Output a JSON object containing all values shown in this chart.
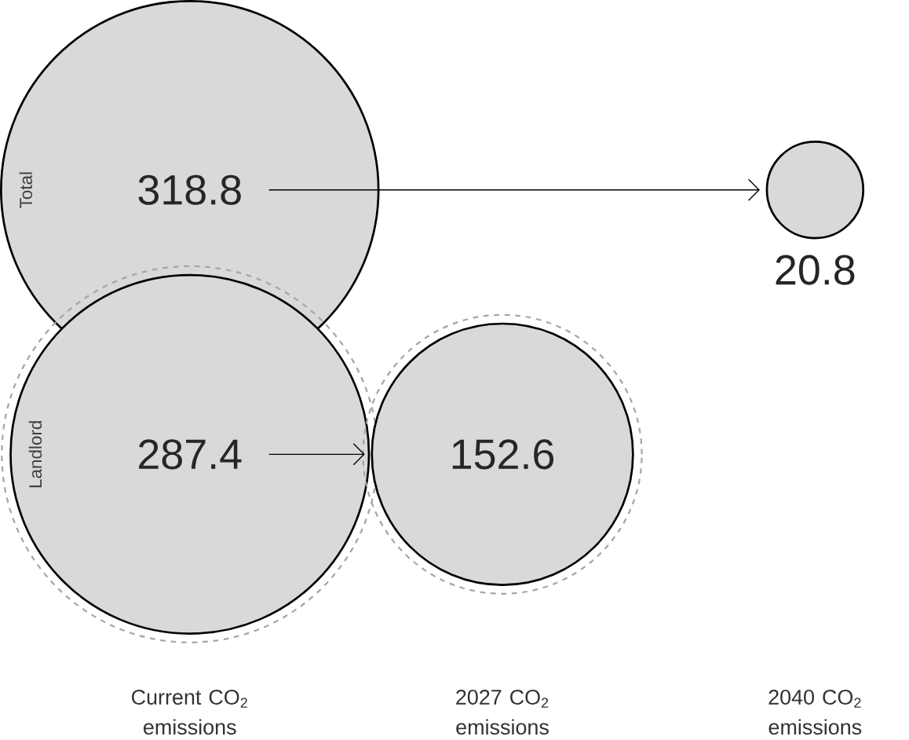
{
  "chart_data": {
    "type": "other",
    "categories": [
      "Current CO$_{2}$ emissions",
      "2027 CO$_{2}$ emissions",
      "2040 CO$_{2}$ emissions"
    ],
    "series": [
      {
        "name": "Total",
        "color": "#d9d9d9",
        "values": [
          318.8,
          null,
          20.8
        ]
      },
      {
        "name": "Landlord",
        "color": "#d9d9d9",
        "values": [
          287.4,
          152.6,
          null
        ]
      }
    ],
    "data_labels": true
  }
}
